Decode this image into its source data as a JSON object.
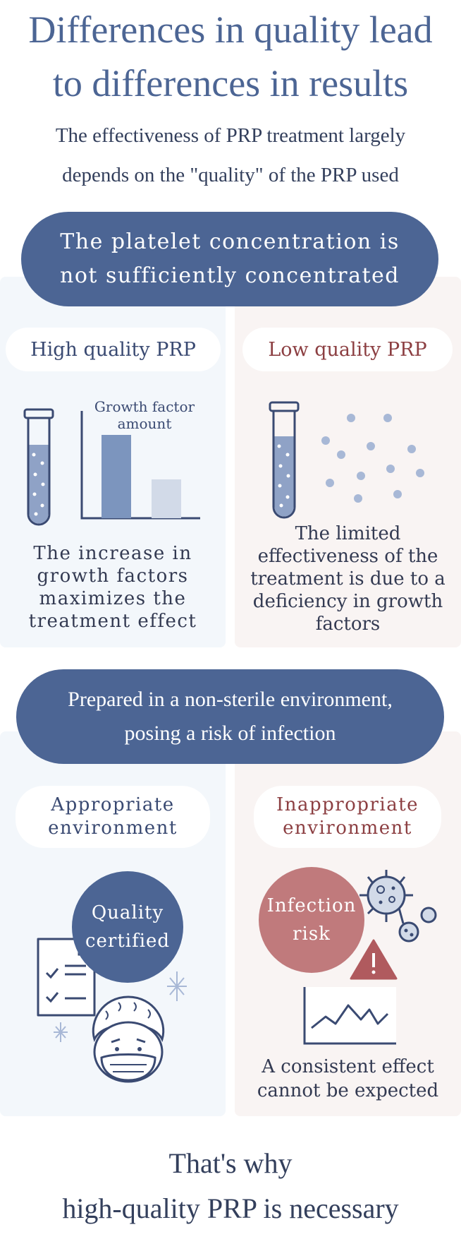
{
  "header": {
    "title_line1": "Differences in quality lead",
    "title_line2": "to differences in results",
    "subtitle_line1": "The effectiveness of PRP treatment largely",
    "subtitle_line2": "depends on the \"quality\" of the PRP used"
  },
  "section1": {
    "heading_line1": "The platelet concentration is",
    "heading_line2": "not sufficiently concentrated",
    "left": {
      "label": "High quality PRP",
      "chart_label_line1": "Growth factor",
      "chart_label_line2": "amount",
      "desc_line1": "The increase in",
      "desc_line2": "growth factors",
      "desc_line3": "maximizes the",
      "desc_line4": "treatment effect"
    },
    "right": {
      "label": "Low quality PRP",
      "desc_line1": "The limited",
      "desc_line2": "effectiveness of the",
      "desc_line3": "treatment is due to a",
      "desc_line4": "deficiency in growth",
      "desc_line5": "factors"
    }
  },
  "section2": {
    "heading_line1": "Prepared in a non-sterile environment,",
    "heading_line2": "posing a risk of infection",
    "left": {
      "label_line1": "Appropriate",
      "label_line2": "environment",
      "badge_line1": "Quality",
      "badge_line2": "certified"
    },
    "right": {
      "label_line1": "Inappropriate",
      "label_line2": "environment",
      "badge_line1": "Infection",
      "badge_line2": "risk",
      "desc_line1": "A consistent effect",
      "desc_line2": "cannot be expected"
    }
  },
  "footer": {
    "line1": "That's why",
    "line2": "high-quality PRP is necessary"
  },
  "colors": {
    "primary": "#4c6594",
    "panel_left": "#f3f7fb",
    "panel_right": "#f9f4f3",
    "risk": "#c07a7c",
    "warning": "#b05a5e"
  }
}
